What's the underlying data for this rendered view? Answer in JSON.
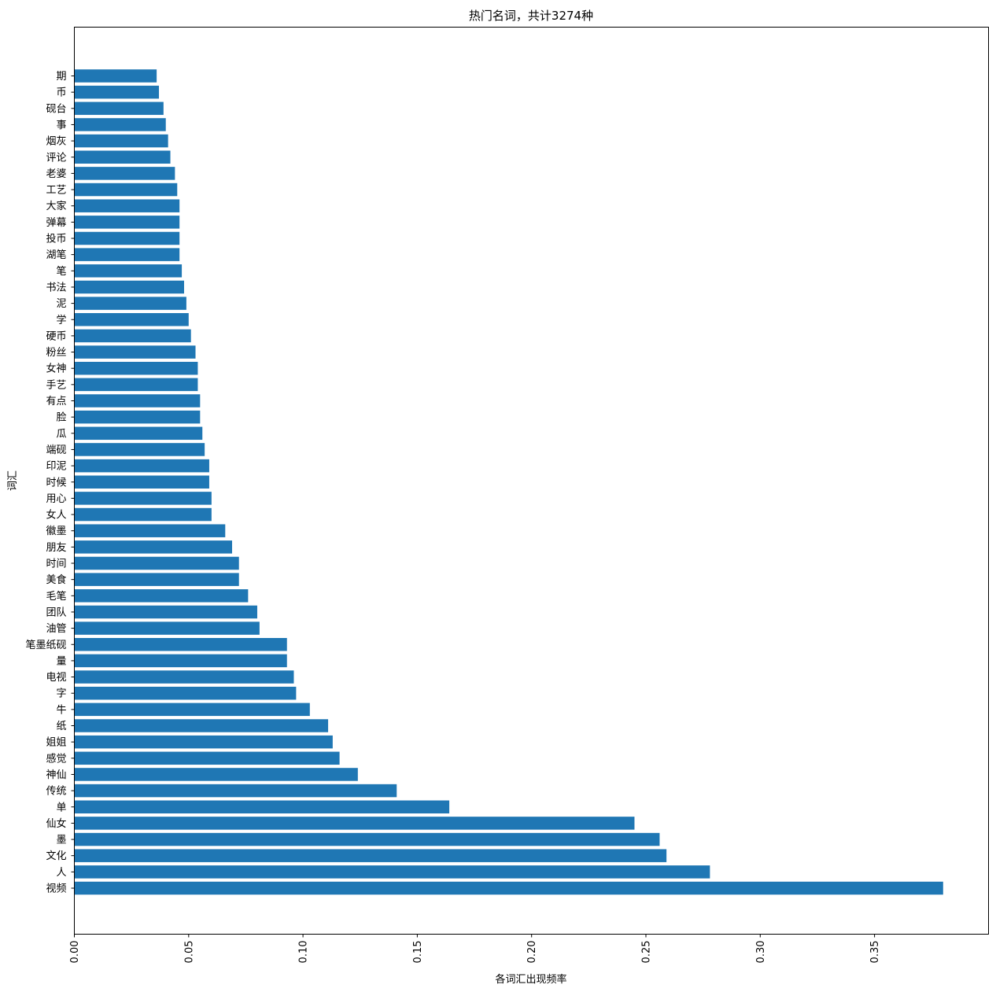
{
  "chart_data": {
    "type": "bar",
    "orientation": "horizontal",
    "title": "热门名词，共计3274种",
    "xlabel": "各词汇出现频率",
    "ylabel": "词汇",
    "xlim": [
      0,
      0.4
    ],
    "xticks": [
      "0.00",
      "0.05",
      "0.10",
      "0.15",
      "0.20",
      "0.25",
      "0.30",
      "0.35"
    ],
    "grid": false,
    "bar_color": "#1f77b4",
    "categories": [
      "视频",
      "人",
      "文化",
      "墨",
      "仙女",
      "单",
      "传统",
      "神仙",
      "感觉",
      "姐姐",
      "纸",
      "牛",
      "字",
      "电视",
      "量",
      "笔墨纸砚",
      "油管",
      "团队",
      "毛笔",
      "美食",
      "时间",
      "朋友",
      "徽墨",
      "女人",
      "用心",
      "时候",
      "印泥",
      "端砚",
      "瓜",
      "脸",
      "有点",
      "手艺",
      "女神",
      "粉丝",
      "硬币",
      "学",
      "泥",
      "书法",
      "笔",
      "湖笔",
      "投币",
      "弹幕",
      "大家",
      "工艺",
      "老婆",
      "评论",
      "烟灰",
      "事",
      "砚台",
      "币",
      "期"
    ],
    "values": [
      0.38,
      0.278,
      0.259,
      0.256,
      0.245,
      0.164,
      0.141,
      0.124,
      0.116,
      0.113,
      0.111,
      0.103,
      0.097,
      0.096,
      0.093,
      0.093,
      0.081,
      0.08,
      0.076,
      0.072,
      0.072,
      0.069,
      0.066,
      0.06,
      0.06,
      0.059,
      0.059,
      0.057,
      0.056,
      0.055,
      0.055,
      0.054,
      0.054,
      0.053,
      0.051,
      0.05,
      0.049,
      0.048,
      0.047,
      0.046,
      0.046,
      0.046,
      0.046,
      0.045,
      0.044,
      0.042,
      0.041,
      0.04,
      0.039,
      0.037,
      0.036
    ]
  }
}
